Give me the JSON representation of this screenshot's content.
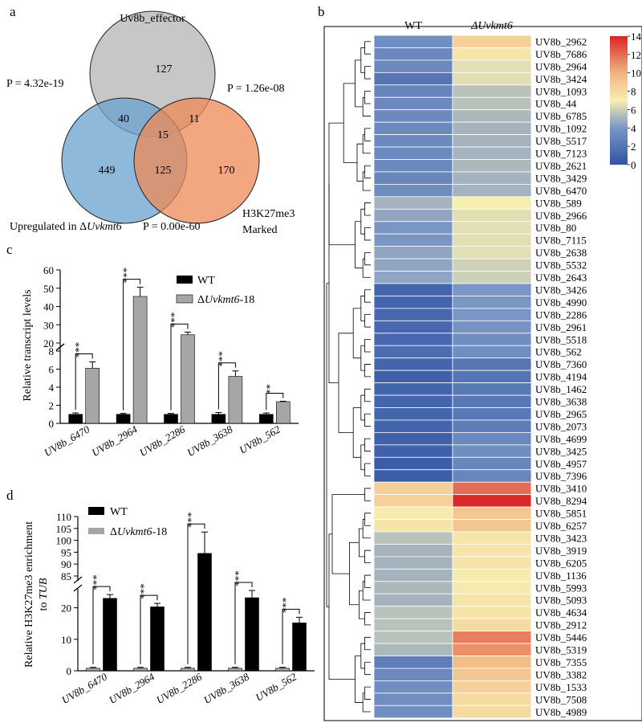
{
  "panels": {
    "a": "a",
    "b": "b",
    "c": "c",
    "d": "d"
  },
  "venn": {
    "set_top": "Uv8b_effector",
    "set_left_prefix": "Upregulated in Δ",
    "set_left_italic": "Uvkmt6",
    "set_right_line1": "H3K27me3",
    "set_right_line2": "Marked",
    "counts": {
      "top_only": "127",
      "left_only": "449",
      "right_only": "170",
      "top_left": "40",
      "top_right": "11",
      "left_right": "125",
      "all": "15"
    },
    "p_top_left": "P = 4.32e-19",
    "p_top_right": "P = 1.26e-08",
    "p_left_right": "P = 0.00e-60",
    "colors": {
      "top": "#bdbdbd",
      "left": "#6aa2cf",
      "right": "#ef8a57"
    }
  },
  "chart_data": [
    {
      "id": "c",
      "type": "bar",
      "ylabel": "Relative transcript levels",
      "categories": [
        "UV8b_6470",
        "UV8b_2964",
        "UV8b_2286",
        "UV8b_3638",
        "UV8b_562"
      ],
      "series": [
        {
          "name": "WT",
          "values": [
            1.0,
            1.0,
            1.0,
            1.0,
            1.0
          ],
          "errors": [
            0.15,
            0.1,
            0.1,
            0.2,
            0.15
          ],
          "color": "#000000"
        },
        {
          "name": "ΔUvkmt6-18",
          "values": [
            6.1,
            45.5,
            24.5,
            5.2,
            2.4
          ],
          "errors": [
            0.7,
            5.0,
            1.5,
            0.6,
            0.05
          ],
          "color": "#a6a6a6"
        }
      ],
      "significance": [
        "***",
        "***",
        "***",
        "***",
        "**"
      ],
      "broken_axis": {
        "lower": [
          0,
          8
        ],
        "upper": [
          20,
          60
        ]
      },
      "ticks_lower": [
        "0",
        "2",
        "4",
        "6",
        "8"
      ],
      "ticks_upper": [
        "20",
        "30",
        "40",
        "50",
        "60"
      ],
      "legend": [
        {
          "label": "WT"
        },
        {
          "label_prefix": "Δ",
          "label_italic": "Uvkmt6",
          "label_suffix": "-18"
        }
      ]
    },
    {
      "id": "d",
      "type": "bar",
      "ylabel_line1": "Relative  H3K27me3 enrichment",
      "ylabel_line2_prefix": "to ",
      "ylabel_line2_italic": "TUB",
      "categories": [
        "UV8b_6470",
        "UV8b_2964",
        "UV8b_2286",
        "UV8b_3638",
        "UV8b_562"
      ],
      "series": [
        {
          "name": "ΔUvkmt6-18",
          "values": [
            0.8,
            0.8,
            0.8,
            0.8,
            0.8
          ],
          "errors": [
            0.3,
            0.3,
            0.3,
            0.3,
            0.3
          ],
          "color": "#a6a6a6"
        },
        {
          "name": "WT",
          "values": [
            23,
            20.3,
            94.5,
            23.2,
            15.2
          ],
          "errors": [
            1.2,
            1.1,
            9,
            2.0,
            1.8
          ],
          "color": "#000000"
        }
      ],
      "significance": [
        "***",
        "***",
        "***",
        "***",
        "***"
      ],
      "broken_axis": {
        "lower": [
          0,
          25
        ],
        "upper": [
          85,
          110
        ]
      },
      "ticks_lower": [
        "0",
        "10",
        "20"
      ],
      "ticks_upper": [
        "85",
        "90",
        "95",
        "100",
        "105",
        "110"
      ],
      "legend": [
        {
          "label": "WT"
        },
        {
          "label_prefix": "Δ",
          "label_italic": "Uvkmt6",
          "label_suffix": "-18"
        }
      ]
    },
    {
      "id": "b",
      "type": "heatmap",
      "columns": [
        "WT",
        "ΔUvkmt6"
      ],
      "colorbar_ticks": [
        "0",
        "2",
        "4",
        "6",
        "8",
        "10",
        "12",
        "14"
      ],
      "range": [
        0,
        14
      ],
      "rows": [
        {
          "gene": "UV8b_2962",
          "wt": 3.5,
          "ko": 8.5
        },
        {
          "gene": "UV8b_7686",
          "wt": 3.2,
          "ko": 7.5
        },
        {
          "gene": "UV8b_2964",
          "wt": 3.2,
          "ko": 6.5
        },
        {
          "gene": "UV8b_3424",
          "wt": 2.0,
          "ko": 6.5
        },
        {
          "gene": "UV8b_1093",
          "wt": 3.0,
          "ko": 5.5
        },
        {
          "gene": "UV8b_44",
          "wt": 3.2,
          "ko": 5.5
        },
        {
          "gene": "UV8b_6785",
          "wt": 3.2,
          "ko": 5.2
        },
        {
          "gene": "UV8b_1092",
          "wt": 3.2,
          "ko": 5.0
        },
        {
          "gene": "UV8b_5517",
          "wt": 3.2,
          "ko": 5.0
        },
        {
          "gene": "UV8b_7123",
          "wt": 3.2,
          "ko": 5.0
        },
        {
          "gene": "UV8b_2621",
          "wt": 3.2,
          "ko": 5.2
        },
        {
          "gene": "UV8b_3429",
          "wt": 3.0,
          "ko": 5.0
        },
        {
          "gene": "UV8b_6470",
          "wt": 3.4,
          "ko": 5.0
        },
        {
          "gene": "UV8b_589",
          "wt": 5.0,
          "ko": 7.0
        },
        {
          "gene": "UV8b_2966",
          "wt": 4.5,
          "ko": 6.5
        },
        {
          "gene": "UV8b_80",
          "wt": 4.0,
          "ko": 6.5
        },
        {
          "gene": "UV8b_7115",
          "wt": 4.0,
          "ko": 6.5
        },
        {
          "gene": "UV8b_2638",
          "wt": 4.5,
          "ko": 6.5
        },
        {
          "gene": "UV8b_5532",
          "wt": 4.5,
          "ko": 6.0
        },
        {
          "gene": "UV8b_2643",
          "wt": 4.5,
          "ko": 6.0
        },
        {
          "gene": "UV8b_3426",
          "wt": 1.0,
          "ko": 4.0
        },
        {
          "gene": "UV8b_4990",
          "wt": 1.0,
          "ko": 4.0
        },
        {
          "gene": "UV8b_2286",
          "wt": 1.2,
          "ko": 4.0
        },
        {
          "gene": "UV8b_2961",
          "wt": 1.2,
          "ko": 3.8
        },
        {
          "gene": "UV8b_5518",
          "wt": 1.2,
          "ko": 3.5
        },
        {
          "gene": "UV8b_562",
          "wt": 1.5,
          "ko": 3.5
        },
        {
          "gene": "UV8b_7360",
          "wt": 1.0,
          "ko": 2.0
        },
        {
          "gene": "UV8b_4194",
          "wt": 0.8,
          "ko": 2.0
        },
        {
          "gene": "UV8b_1462",
          "wt": 1.0,
          "ko": 2.2
        },
        {
          "gene": "UV8b_3638",
          "wt": 1.0,
          "ko": 2.2
        },
        {
          "gene": "UV8b_2965",
          "wt": 1.0,
          "ko": 2.2
        },
        {
          "gene": "UV8b_2073",
          "wt": 1.0,
          "ko": 2.5
        },
        {
          "gene": "UV8b_4699",
          "wt": 0.8,
          "ko": 3.2
        },
        {
          "gene": "UV8b_3425",
          "wt": 0.8,
          "ko": 3.5
        },
        {
          "gene": "UV8b_4957",
          "wt": 0.6,
          "ko": 3.0
        },
        {
          "gene": "UV8b_7396",
          "wt": 0.6,
          "ko": 3.0
        },
        {
          "gene": "UV8b_3410",
          "wt": 8.5,
          "ko": 12.0
        },
        {
          "gene": "UV8b_8294",
          "wt": 8.5,
          "ko": 13.8
        },
        {
          "gene": "UV8b_5851",
          "wt": 7.2,
          "ko": 9.0
        },
        {
          "gene": "UV8b_6257",
          "wt": 7.5,
          "ko": 9.0
        },
        {
          "gene": "UV8b_3423",
          "wt": 5.5,
          "ko": 7.5
        },
        {
          "gene": "UV8b_3919",
          "wt": 5.0,
          "ko": 7.5
        },
        {
          "gene": "UV8b_6205",
          "wt": 5.0,
          "ko": 7.5
        },
        {
          "gene": "UV8b_1136",
          "wt": 5.0,
          "ko": 7.2
        },
        {
          "gene": "UV8b_5993",
          "wt": 5.2,
          "ko": 7.2
        },
        {
          "gene": "UV8b_5093",
          "wt": 5.0,
          "ko": 7.5
        },
        {
          "gene": "UV8b_4634",
          "wt": 5.5,
          "ko": 7.5
        },
        {
          "gene": "UV8b_2912",
          "wt": 5.5,
          "ko": 8.0
        },
        {
          "gene": "UV8b_5446",
          "wt": 5.5,
          "ko": 11.5
        },
        {
          "gene": "UV8b_5319",
          "wt": 5.2,
          "ko": 11.0
        },
        {
          "gene": "UV8b_7355",
          "wt": 2.5,
          "ko": 9.5
        },
        {
          "gene": "UV8b_3382",
          "wt": 3.2,
          "ko": 9.0
        },
        {
          "gene": "UV8b_1533",
          "wt": 3.5,
          "ko": 8.5
        },
        {
          "gene": "UV8b_7508",
          "wt": 3.5,
          "ko": 8.0
        },
        {
          "gene": "UV8b_4989",
          "wt": 3.5,
          "ko": 8.0
        }
      ]
    }
  ]
}
